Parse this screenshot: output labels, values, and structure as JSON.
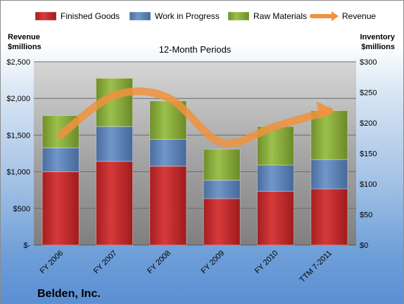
{
  "chart_data": {
    "type": "bar",
    "title": "12-Month Periods",
    "company": "Belden, Inc.",
    "left_axis_title": [
      "Revenue",
      "$millions"
    ],
    "right_axis_title": [
      "Inventory",
      "$millions"
    ],
    "categories": [
      "FY 2006",
      "FY 2007",
      "FY 2008",
      "FY 2009",
      "FY 2010",
      "TTM 7-2011"
    ],
    "left_ticks": [
      "$-",
      "$500",
      "$1,000",
      "$1,500",
      "$2,000",
      "$2,500"
    ],
    "right_ticks": [
      "$0",
      "$50",
      "$100",
      "$150",
      "$200",
      "$250",
      "$300"
    ],
    "left_ylim": [
      0,
      2500
    ],
    "right_ylim": [
      0,
      300
    ],
    "stacked": true,
    "series": [
      {
        "name": "Finished Goods",
        "axis": "right",
        "color": "#c0282a",
        "values": [
          120,
          137,
          129,
          76,
          88,
          92
        ]
      },
      {
        "name": "Work in Progress",
        "axis": "right",
        "color": "#5b7fb4",
        "values": [
          39,
          57,
          44,
          30,
          43,
          48
        ]
      },
      {
        "name": "Raw Materials",
        "axis": "right",
        "color": "#88ab3a",
        "values": [
          53,
          79,
          63,
          51,
          63,
          80
        ]
      },
      {
        "name": "Revenue",
        "axis": "left",
        "type": "line",
        "color": "#f0923e",
        "values": [
          1500,
          2040,
          2010,
          1400,
          1620,
          1830
        ]
      }
    ],
    "grid": true,
    "legend_position": "top"
  }
}
